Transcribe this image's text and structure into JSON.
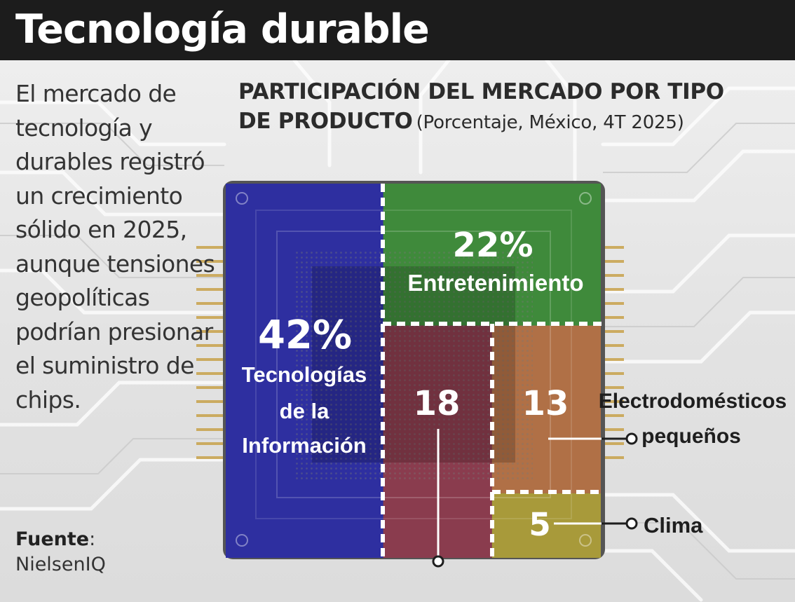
{
  "header": {
    "title": "Tecnología durable"
  },
  "intro": {
    "text": "El mercado de tecnología y durables registró un crecimiento sólido en 2025, aunque tensiones geopolíticas podrían presionar el suministro de chips."
  },
  "source": {
    "label": "Fuente",
    "separator": ":",
    "name": "NielsenIQ"
  },
  "chart_title": {
    "main": "PARTICIPACIÓN DEL MERCADO POR TIPO DE PRODUCTO",
    "sub": "(Porcentaje, México, 4T 2025)"
  },
  "chart_data": {
    "type": "treemap",
    "title": "PARTICIPACIÓN DEL MERCADO POR TIPO DE PRODUCTO",
    "subtitle": "(Porcentaje, México, 4T 2025)",
    "unit": "%",
    "series": [
      {
        "name": "Tecnologías de la Información",
        "value": 42,
        "value_label": "42%",
        "label_lines": [
          "Tecnologías",
          "de la",
          "Información"
        ],
        "color": "#2e2fa0"
      },
      {
        "name": "Entretenimiento",
        "value": 22,
        "value_label": "22%",
        "label_lines": [
          "Entretenimiento"
        ],
        "color": "#3f8a3b"
      },
      {
        "name": "",
        "value": 18,
        "value_label": "18",
        "label_lines": [],
        "color": "#8a3c4e"
      },
      {
        "name": "Electrodomésticos pequeños",
        "value": 13,
        "value_label": "13",
        "label_lines": [
          "Electrodomésticos",
          "pequeños"
        ],
        "color": "#b07046"
      },
      {
        "name": "Clima",
        "value": 5,
        "value_label": "5",
        "label_lines": [
          "Clima"
        ],
        "color": "#a89a3a"
      }
    ]
  }
}
